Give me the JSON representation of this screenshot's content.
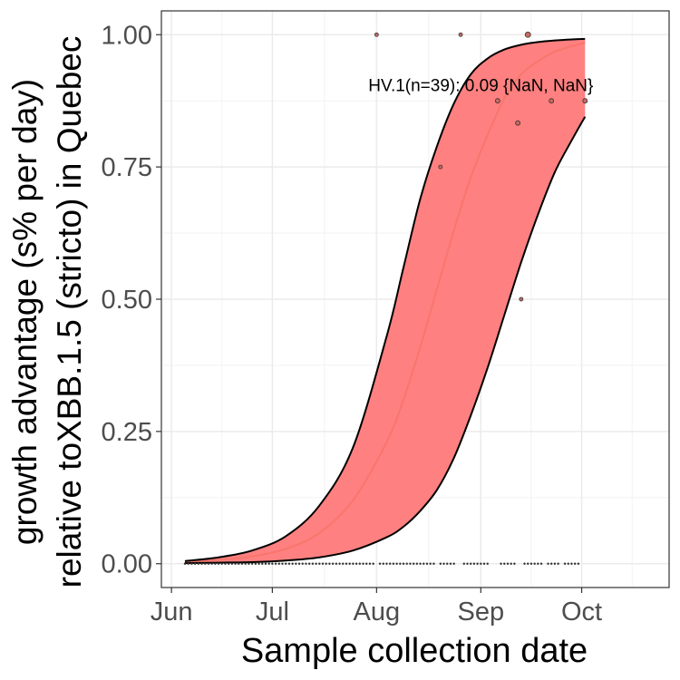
{
  "chart_data": {
    "type": "line",
    "title": "",
    "xlabel": "Sample collection date",
    "ylabel_line1": "growth advantage (s% per day)",
    "ylabel_line2": "relative toXBB.1.5 (stricto) in Quebec",
    "x_axis_type": "date",
    "xlim": [
      "2023-05-29",
      "2023-10-27"
    ],
    "ylim": [
      -0.045,
      1.045
    ],
    "x_ticks": [
      {
        "date": "2023-06-01",
        "label": "Jun"
      },
      {
        "date": "2023-07-01",
        "label": "Jul"
      },
      {
        "date": "2023-08-01",
        "label": "Aug"
      },
      {
        "date": "2023-09-01",
        "label": "Sep"
      },
      {
        "date": "2023-10-01",
        "label": "Oct"
      }
    ],
    "y_ticks": [
      {
        "value": 0.0,
        "label": "0.00"
      },
      {
        "value": 0.25,
        "label": "0.25"
      },
      {
        "value": 0.5,
        "label": "0.50"
      },
      {
        "value": 0.75,
        "label": "0.75"
      },
      {
        "value": 1.0,
        "label": "1.00"
      }
    ],
    "grid": true,
    "annotation": {
      "text": "HV.1(n=39): 0.09 {NaN, NaN}",
      "date": "2023-09-01",
      "value": 0.905
    },
    "fit": {
      "color": "#F8766D",
      "ribbon_fill": "#FF8080",
      "dates": [
        "2023-06-05",
        "2023-06-15",
        "2023-06-25",
        "2023-07-05",
        "2023-07-15",
        "2023-07-25",
        "2023-08-04",
        "2023-08-09",
        "2023-08-14",
        "2023-08-19",
        "2023-08-24",
        "2023-08-29",
        "2023-09-03",
        "2023-09-08",
        "2023-09-13",
        "2023-09-18",
        "2023-09-23",
        "2023-09-28",
        "2023-10-02"
      ],
      "mean": [
        0.003,
        0.007,
        0.014,
        0.028,
        0.058,
        0.12,
        0.23,
        0.31,
        0.41,
        0.52,
        0.63,
        0.73,
        0.81,
        0.88,
        0.925,
        0.95,
        0.968,
        0.978,
        0.985
      ],
      "upper": [
        0.005,
        0.012,
        0.025,
        0.052,
        0.11,
        0.22,
        0.43,
        0.56,
        0.69,
        0.79,
        0.87,
        0.925,
        0.955,
        0.972,
        0.981,
        0.986,
        0.989,
        0.991,
        0.992
      ],
      "lower": [
        0.001,
        0.002,
        0.003,
        0.006,
        0.012,
        0.025,
        0.05,
        0.07,
        0.1,
        0.14,
        0.2,
        0.28,
        0.37,
        0.47,
        0.57,
        0.66,
        0.74,
        0.8,
        0.845
      ]
    },
    "points": [
      {
        "date": "2023-08-01",
        "value": 1.0,
        "size": 2
      },
      {
        "date": "2023-08-26",
        "value": 1.0,
        "size": 2
      },
      {
        "date": "2023-09-15",
        "value": 1.0,
        "size": 3
      },
      {
        "date": "2023-08-20",
        "value": 0.75,
        "size": 2
      },
      {
        "date": "2023-09-06",
        "value": 0.875,
        "size": 2.5
      },
      {
        "date": "2023-09-12",
        "value": 0.833,
        "size": 2.5
      },
      {
        "date": "2023-09-22",
        "value": 0.875,
        "size": 2.5
      },
      {
        "date": "2023-10-02",
        "value": 0.875,
        "size": 2.5
      },
      {
        "date": "2023-09-13",
        "value": 0.5,
        "size": 2
      }
    ],
    "zero_points": {
      "color": "#333333",
      "segments": [
        [
          "2023-06-05",
          "2023-07-31"
        ],
        [
          "2023-08-02",
          "2023-08-18"
        ],
        [
          "2023-08-20",
          "2023-08-24"
        ],
        [
          "2023-08-27",
          "2023-09-03"
        ],
        [
          "2023-09-07",
          "2023-09-11"
        ],
        [
          "2023-09-14",
          "2023-09-19"
        ],
        [
          "2023-09-21",
          "2023-09-24"
        ],
        [
          "2023-09-26",
          "2023-09-30"
        ]
      ]
    }
  }
}
